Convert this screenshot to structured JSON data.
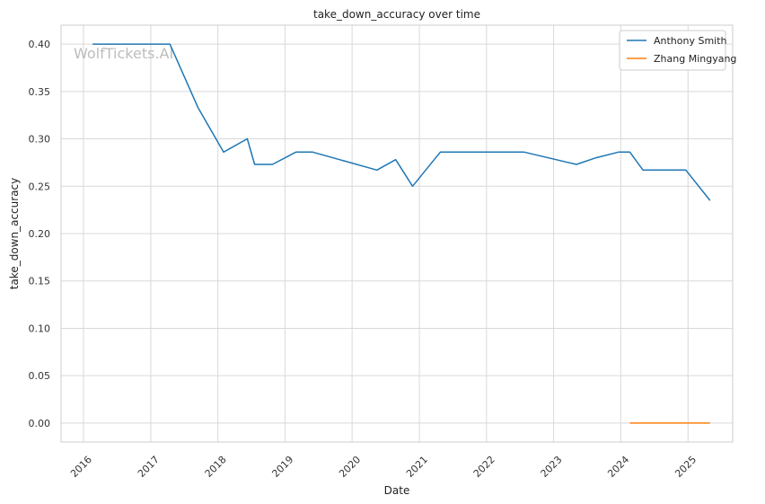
{
  "chart_data": {
    "type": "line",
    "title": "take_down_accuracy over time",
    "xlabel": "Date",
    "ylabel": "take_down_accuracy",
    "watermark": "WolfTickets.AI",
    "xlim": [
      "2015-09-01",
      "2025-09-01"
    ],
    "ylim": [
      -0.02,
      0.42
    ],
    "x_ticks": [
      "2016",
      "2017",
      "2018",
      "2019",
      "2020",
      "2021",
      "2022",
      "2023",
      "2024",
      "2025"
    ],
    "y_ticks": [
      0.0,
      0.05,
      0.1,
      0.15,
      0.2,
      0.25,
      0.3,
      0.35,
      0.4
    ],
    "y_tick_labels": [
      "0.00",
      "0.05",
      "0.10",
      "0.15",
      "0.20",
      "0.25",
      "0.30",
      "0.35",
      "0.40"
    ],
    "grid": true,
    "legend_position": "top-right",
    "series": [
      {
        "name": "Anthony Smith",
        "color": "#1f77b4",
        "points": [
          [
            "2016-02-20",
            0.4
          ],
          [
            "2017-04-15",
            0.4
          ],
          [
            "2017-09-15",
            0.333
          ],
          [
            "2018-02-01",
            0.286
          ],
          [
            "2018-06-10",
            0.3
          ],
          [
            "2018-07-20",
            0.273
          ],
          [
            "2018-10-25",
            0.273
          ],
          [
            "2019-03-01",
            0.286
          ],
          [
            "2019-06-01",
            0.286
          ],
          [
            "2020-05-15",
            0.267
          ],
          [
            "2020-08-25",
            0.278
          ],
          [
            "2020-11-25",
            0.25
          ],
          [
            "2021-04-25",
            0.286
          ],
          [
            "2022-07-25",
            0.286
          ],
          [
            "2023-05-05",
            0.273
          ],
          [
            "2023-08-20",
            0.28
          ],
          [
            "2023-12-20",
            0.286
          ],
          [
            "2024-02-20",
            0.286
          ],
          [
            "2024-05-01",
            0.267
          ],
          [
            "2024-12-20",
            0.267
          ],
          [
            "2025-05-01",
            0.235
          ]
        ]
      },
      {
        "name": "Zhang Mingyang",
        "color": "#ff7f0e",
        "points": [
          [
            "2024-02-20",
            0.0
          ],
          [
            "2025-05-01",
            0.0
          ]
        ]
      }
    ]
  }
}
